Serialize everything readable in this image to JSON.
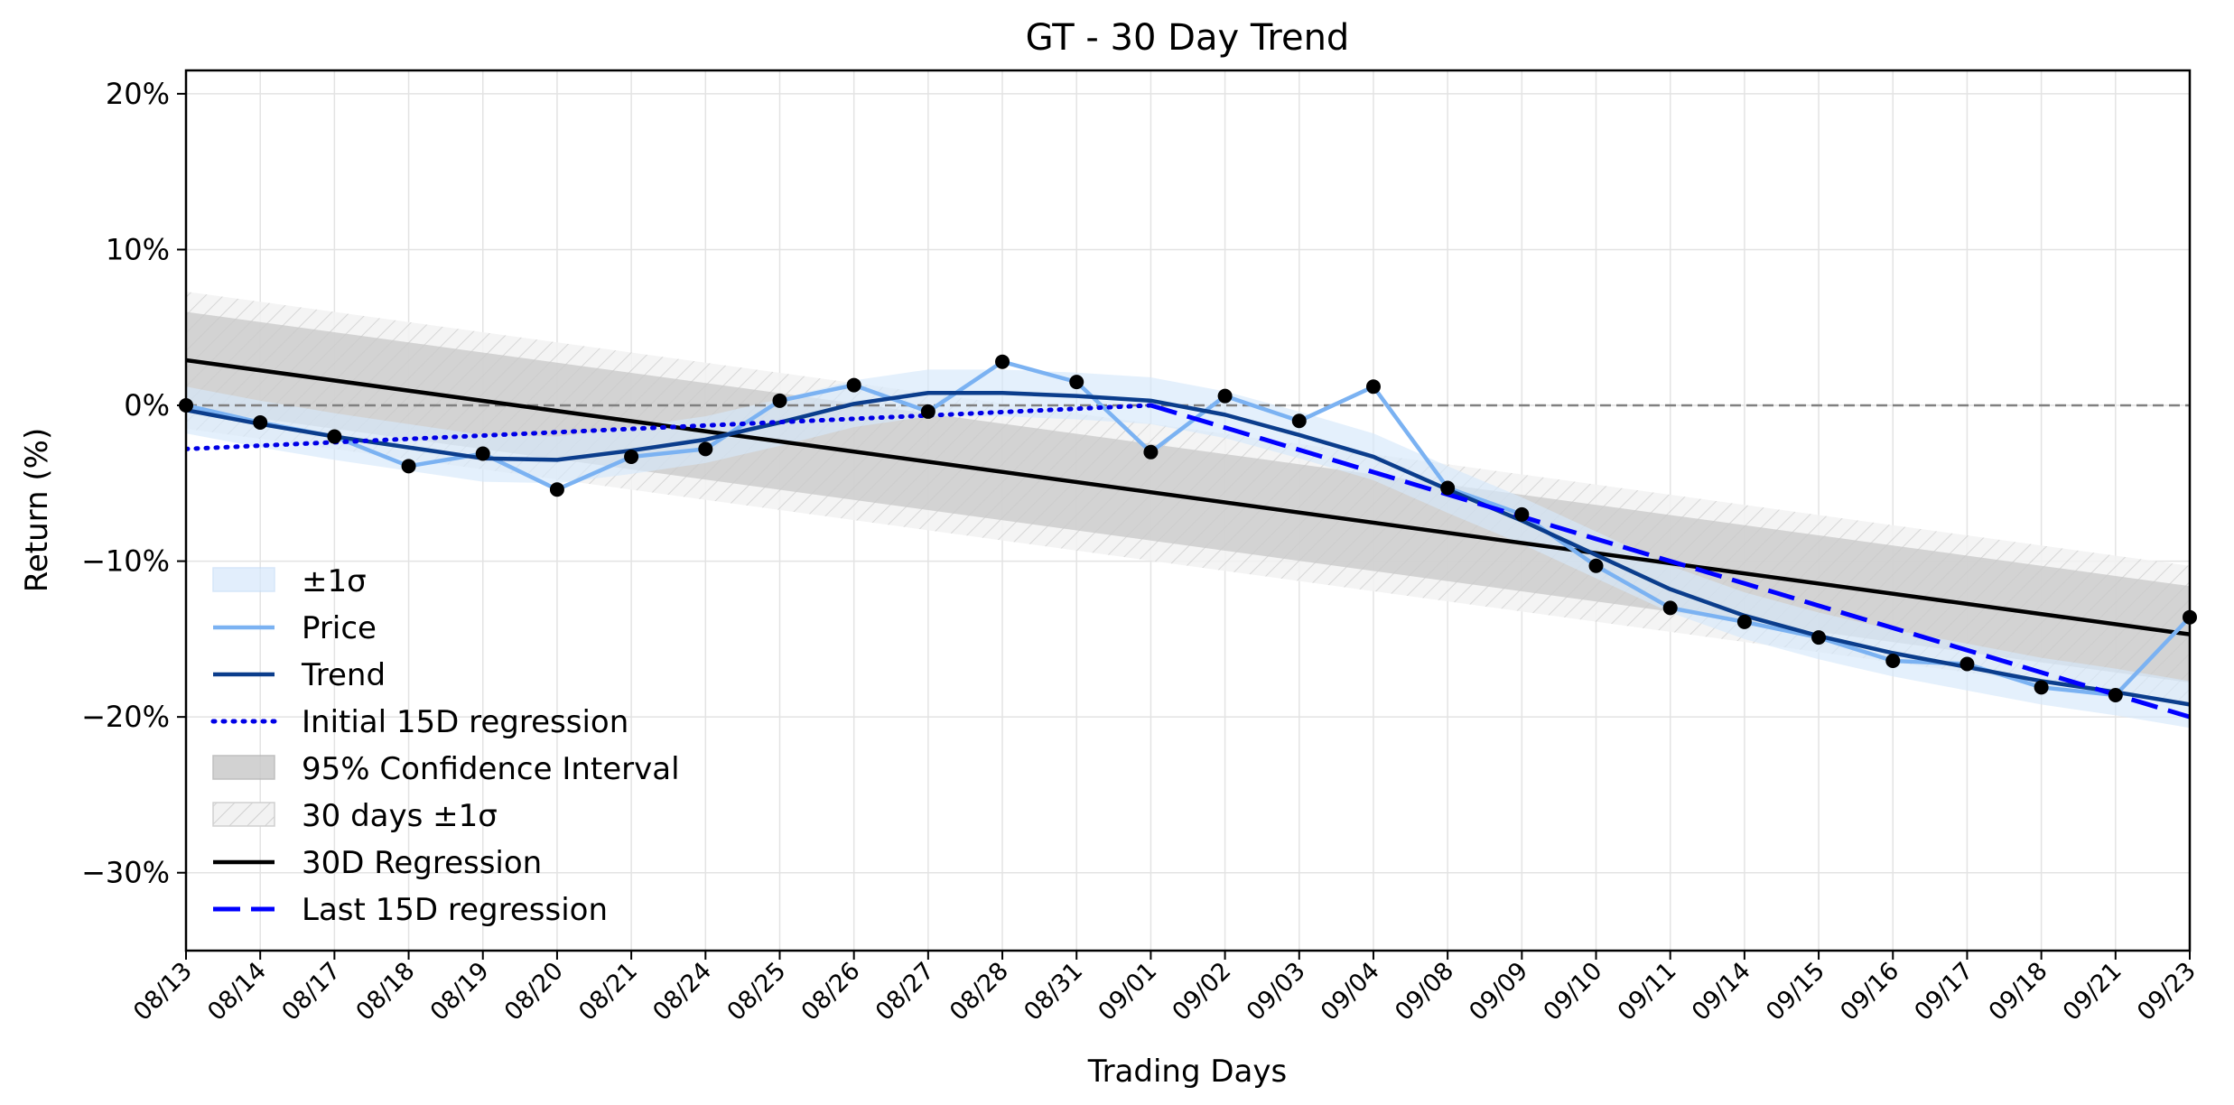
{
  "chart_data": {
    "type": "line",
    "title": "GT - 30 Day Trend",
    "xlabel": "Trading Days",
    "ylabel": "Return (%)",
    "ylim": [
      -35,
      21.5
    ],
    "yticks": [
      20,
      10,
      0,
      -10,
      -20,
      -30
    ],
    "ytick_labels": [
      "20%",
      "10%",
      "0%",
      "−10%",
      "−20%",
      "−30%"
    ],
    "grid": true,
    "legend_position": "lower-left",
    "categories": [
      "08/13",
      "08/14",
      "08/17",
      "08/18",
      "08/19",
      "08/20",
      "08/21",
      "08/24",
      "08/25",
      "08/26",
      "08/27",
      "08/28",
      "08/31",
      "09/01",
      "09/02",
      "09/03",
      "09/04",
      "09/08",
      "09/09",
      "09/10",
      "09/11",
      "09/14",
      "09/15",
      "09/16",
      "09/17",
      "09/18",
      "09/21",
      "09/23"
    ],
    "series": [
      {
        "name": "Price",
        "color": "#7bb2f2",
        "values": [
          0.0,
          -1.1,
          -2.0,
          -3.9,
          -3.1,
          -5.4,
          -3.3,
          -2.8,
          0.3,
          1.3,
          -0.4,
          2.8,
          1.5,
          -3.0,
          0.6,
          -1.0,
          1.2,
          -5.3,
          -7.0,
          -10.3,
          -13.0,
          -13.9,
          -14.9,
          -16.4,
          -16.6,
          -18.1,
          -18.6,
          -13.6
        ]
      },
      {
        "name": "Trend",
        "color": "#0b3d8c",
        "values": [
          -0.3,
          -1.2,
          -2.0,
          -2.7,
          -3.4,
          -3.5,
          -2.9,
          -2.2,
          -1.1,
          0.1,
          0.8,
          0.8,
          0.6,
          0.3,
          -0.6,
          -1.9,
          -3.3,
          -5.4,
          -7.4,
          -9.6,
          -11.8,
          -13.5,
          -14.8,
          -15.9,
          -16.8,
          -17.7,
          -18.4,
          -19.2
        ]
      },
      {
        "name": "Initial 15D regression",
        "color": "#0000e6",
        "style": "dotted",
        "x_range": [
          "08/13",
          "09/01"
        ],
        "endpoints": [
          -2.8,
          0.0
        ]
      },
      {
        "name": "Last 15D regression",
        "color": "#0000ff",
        "style": "dashed",
        "x_range": [
          "09/01",
          "09/23"
        ],
        "endpoints": [
          0.0,
          -20.0
        ]
      },
      {
        "name": "30D Regression",
        "color": "#000000",
        "style": "solid",
        "x_range": [
          "08/13",
          "09/23"
        ],
        "endpoints": [
          2.9,
          -14.7
        ]
      }
    ],
    "bands": [
      {
        "name": "±1σ",
        "color": "#d6e8fb",
        "around": "Trend",
        "half_width": 1.5
      },
      {
        "name": "95% Confidence Interval",
        "color": "#c8c8c8",
        "around": "30D Regression",
        "half_width": 3.1
      },
      {
        "name": "30 days ±1σ",
        "color": "#e9e9e9",
        "hatch": true,
        "around": "30D Regression",
        "half_width": 4.4
      }
    ],
    "reference_line": {
      "y": 0,
      "color": "#808080",
      "style": "dashed"
    },
    "legend": [
      "±1σ",
      "Price",
      "Trend",
      "Initial 15D regression",
      "95% Confidence Interval",
      "30 days ±1σ",
      "30D Regression",
      "Last 15D regression"
    ]
  }
}
